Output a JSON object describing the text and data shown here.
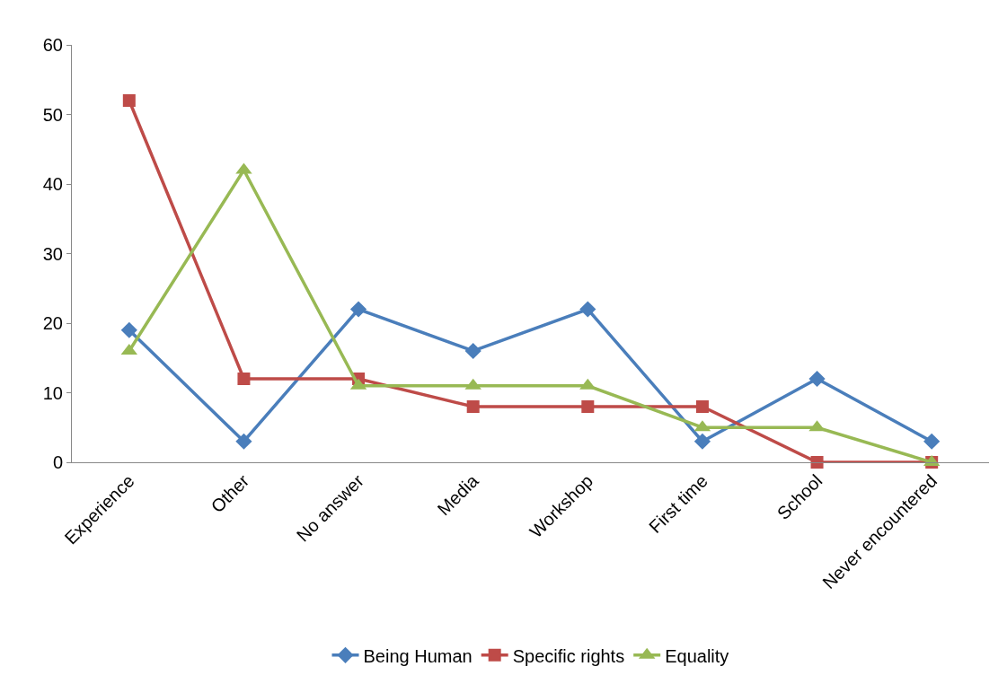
{
  "chart_data": {
    "type": "line",
    "categories": [
      "Experience",
      "Other",
      "No answer",
      "Media",
      "Workshop",
      "First time",
      "School",
      "Never encountered"
    ],
    "series": [
      {
        "name": "Being Human",
        "color": "#4a7ebb",
        "marker": "diamond",
        "values": [
          19,
          3,
          22,
          16,
          22,
          3,
          12,
          3
        ]
      },
      {
        "name": "Specific rights",
        "color": "#be4b48",
        "marker": "square",
        "values": [
          52,
          12,
          12,
          8,
          8,
          8,
          0,
          0
        ]
      },
      {
        "name": "Equality",
        "color": "#98b954",
        "marker": "triangle",
        "values": [
          16,
          42,
          11,
          11,
          11,
          5,
          5,
          0
        ]
      }
    ],
    "ylim": [
      0,
      60
    ],
    "yticks": [
      0,
      10,
      20,
      30,
      40,
      50,
      60
    ],
    "grid": false,
    "legend": "bottom",
    "line_style": "solid"
  }
}
